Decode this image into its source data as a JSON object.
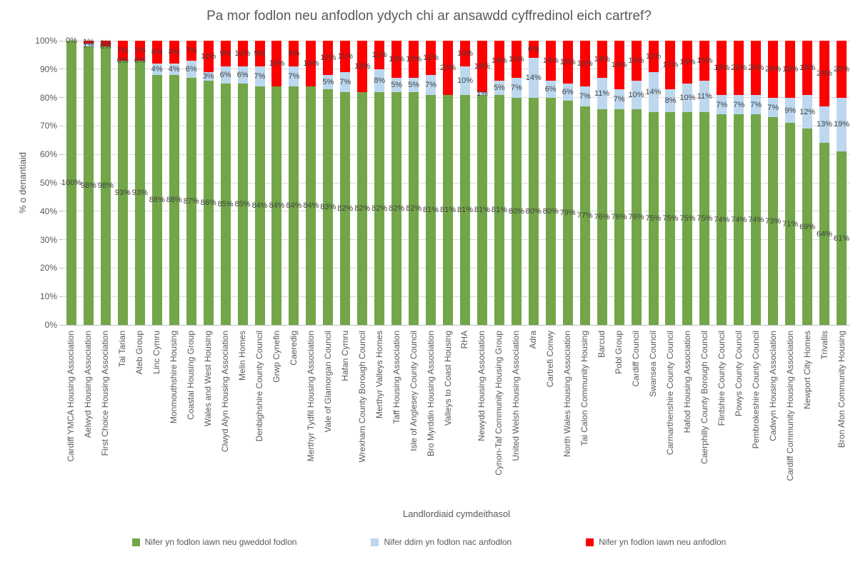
{
  "chart_data": {
    "type": "bar",
    "subtype": "stacked-100-percent",
    "title": "Pa mor fodlon neu anfodlon ydych chi ar ansawdd cyffredinol eich cartref?",
    "xlabel": "Landlordiaid cymdeithasol",
    "ylabel": "% o denantiaid",
    "ylim": [
      0,
      100
    ],
    "yticks": [
      "0%",
      "10%",
      "20%",
      "30%",
      "40%",
      "50%",
      "60%",
      "70%",
      "80%",
      "90%",
      "100%"
    ],
    "grid": true,
    "legend_position": "bottom",
    "categories": [
      "Cardiff YMCA Housing Association",
      "Aelwyd Housing Association",
      "First Choice Housing Association",
      "Tai Tarian",
      "Ateb Group",
      "Linc Cymru",
      "Monmouthshire Housing",
      "Coastal Housing Group",
      "Wales and West Housing",
      "Clwyd Alyn Housing Association",
      "Melin Homes",
      "Denbighshire County Council",
      "Grwp Cynefin",
      "Caeredig",
      "Merthyr Tydfil Housing Association",
      "Vale of Glamorgan Council",
      "Hafan Cymru",
      "Wrexham County Borough Council",
      "Merthyr Valleys Homes",
      "Taff Housing Association",
      "Isle of Anglesey County Council",
      "Bro Myrddin Housing Association",
      "Valleys to Coast Housing",
      "RHA",
      "Newydd Housing Association",
      "Cynon-Taf Community Housing Group",
      "United Welsh Housing Association",
      "Adra",
      "Cartrefi Conwy",
      "North Wales Housing Association",
      "Tai Calon Community Housing",
      "Barcud",
      "Pobl Group",
      "Cardiff Council",
      "Swansea Council",
      "Carmarthenshire County Council",
      "Hafod Housing Association",
      "Caerphilly County Borough Council",
      "Flintshire County Council",
      "Powys County Council",
      "Pembrokeshire County Council",
      "Cadwyn Housing Association",
      "Cardiff Community Housing Association",
      "Newport City Homes",
      "Trivallis",
      "Bron Afon Community Housing"
    ],
    "series": [
      {
        "name": "Nifer yn fodlon iawn neu gweddol fodlon",
        "color": "#72A648",
        "values": [
          100,
          98,
          98,
          93,
          93,
          88,
          88,
          87,
          86,
          85,
          85,
          84,
          84,
          84,
          84,
          83,
          82,
          82,
          82,
          82,
          82,
          81,
          81,
          81,
          81,
          81,
          80,
          80,
          80,
          79,
          77,
          76,
          76,
          76,
          75,
          75,
          75,
          75,
          74,
          74,
          74,
          73,
          71,
          69,
          64,
          61
        ],
        "labels": [
          "100%",
          "98%",
          "98%",
          "93%",
          "93%",
          "88%",
          "88%",
          "87%",
          "86%",
          "85%",
          "85%",
          "84%",
          "84%",
          "84%",
          "84%",
          "83%",
          "82%",
          "82%",
          "82%",
          "82%",
          "82%",
          "81%",
          "81%",
          "81%",
          "81%",
          "81%",
          "80%",
          "80%",
          "80%",
          "79%",
          "77%",
          "76%",
          "76%",
          "76%",
          "75%",
          "75%",
          "75%",
          "75%",
          "74%",
          "74%",
          "74%",
          "73%",
          "71%",
          "69%",
          "64%",
          "61%"
        ]
      },
      {
        "name": "Nifer ddim yn fodlon nac anfodlon",
        "color": "#BDD7EE",
        "values": [
          0,
          1,
          0,
          0,
          0,
          4,
          4,
          6,
          3,
          6,
          6,
          7,
          0,
          7,
          0,
          5,
          7,
          0,
          8,
          5,
          5,
          7,
          0,
          10,
          1,
          5,
          7,
          14,
          6,
          6,
          7,
          11,
          7,
          10,
          14,
          8,
          10,
          11,
          7,
          7,
          7,
          7,
          9,
          12,
          13,
          19
        ],
        "labels": [
          null,
          "1%",
          "0%",
          "0%",
          "0%",
          "4%",
          "4%",
          "6%",
          "3%",
          "6%",
          "6%",
          "7%",
          null,
          "7%",
          null,
          "5%",
          "7%",
          null,
          "8%",
          "5%",
          "5%",
          "7%",
          null,
          "10%",
          "1%",
          "5%",
          "7%",
          "14%",
          "6%",
          "6%",
          "7%",
          "11%",
          "7%",
          "10%",
          "14%",
          "8%",
          "10%",
          "11%",
          "7%",
          "7%",
          "7%",
          "7%",
          "9%",
          "12%",
          "13%",
          "19%"
        ]
      },
      {
        "name": "Nifer yn fodlon iawn neu anfodlon",
        "color": "#FF0000",
        "values": [
          0,
          1,
          2,
          7,
          7,
          8,
          8,
          7,
          11,
          9,
          10,
          9,
          16,
          9,
          16,
          12,
          11,
          18,
          11,
          13,
          13,
          12,
          20,
          10,
          18,
          14,
          14,
          6,
          14,
          16,
          16,
          14,
          16,
          15,
          11,
          17,
          15,
          15,
          18,
          20,
          20,
          20,
          19,
          19,
          23,
          20
        ],
        "labels": [
          "0%",
          "1%",
          "2%",
          "7%",
          "7%",
          "8%",
          "8%",
          "7%",
          "11%",
          "9%",
          "10%",
          "9%",
          "16%",
          "9%",
          "16%",
          "12%",
          "11%",
          "18%",
          "11%",
          "13%",
          "13%",
          "12%",
          "20%",
          "10%",
          "18%",
          "14%",
          "14%",
          "6%",
          "14%",
          "16%",
          "16%",
          "14%",
          "16%",
          "15%",
          "11%",
          "17%",
          "15%",
          "15%",
          "18%",
          "20%",
          "20%",
          "20%",
          "19%",
          "19%",
          "23%",
          "20%"
        ]
      }
    ]
  },
  "colors": {
    "background": "#FFFFFF",
    "title_text": "#595959",
    "axis_text": "#595959",
    "data_label_text": "#404040",
    "gridline": "#D9D9D9",
    "axis_line": "#BFBFBF"
  }
}
